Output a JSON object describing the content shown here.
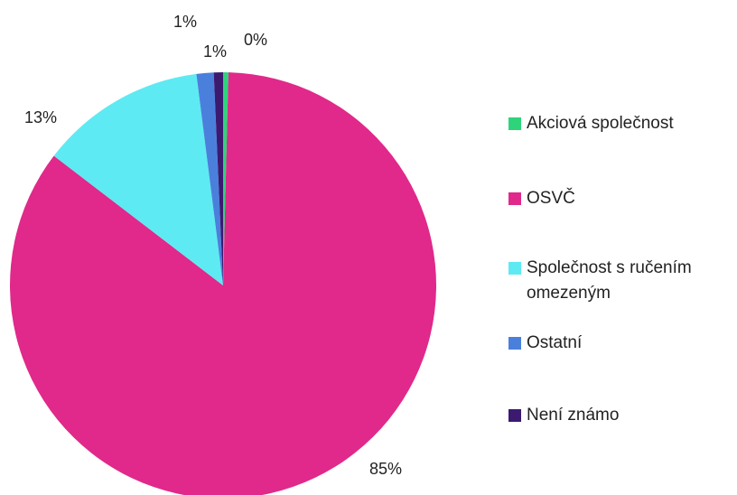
{
  "chart_data": {
    "type": "pie",
    "categories": [
      "Akciová společnost",
      "OSVČ",
      "Společnost s ručením omezeným",
      "Ostatní",
      "Není známo"
    ],
    "values": [
      0.4,
      85.0,
      12.6,
      1.3,
      0.7
    ],
    "value_labels": [
      "0%",
      "85%",
      "13%",
      "1%",
      "1%"
    ],
    "colors": [
      "#2ed47a",
      "#e0298a",
      "#5eeaf2",
      "#4a80dc",
      "#3c1a70"
    ],
    "legend": "right"
  }
}
